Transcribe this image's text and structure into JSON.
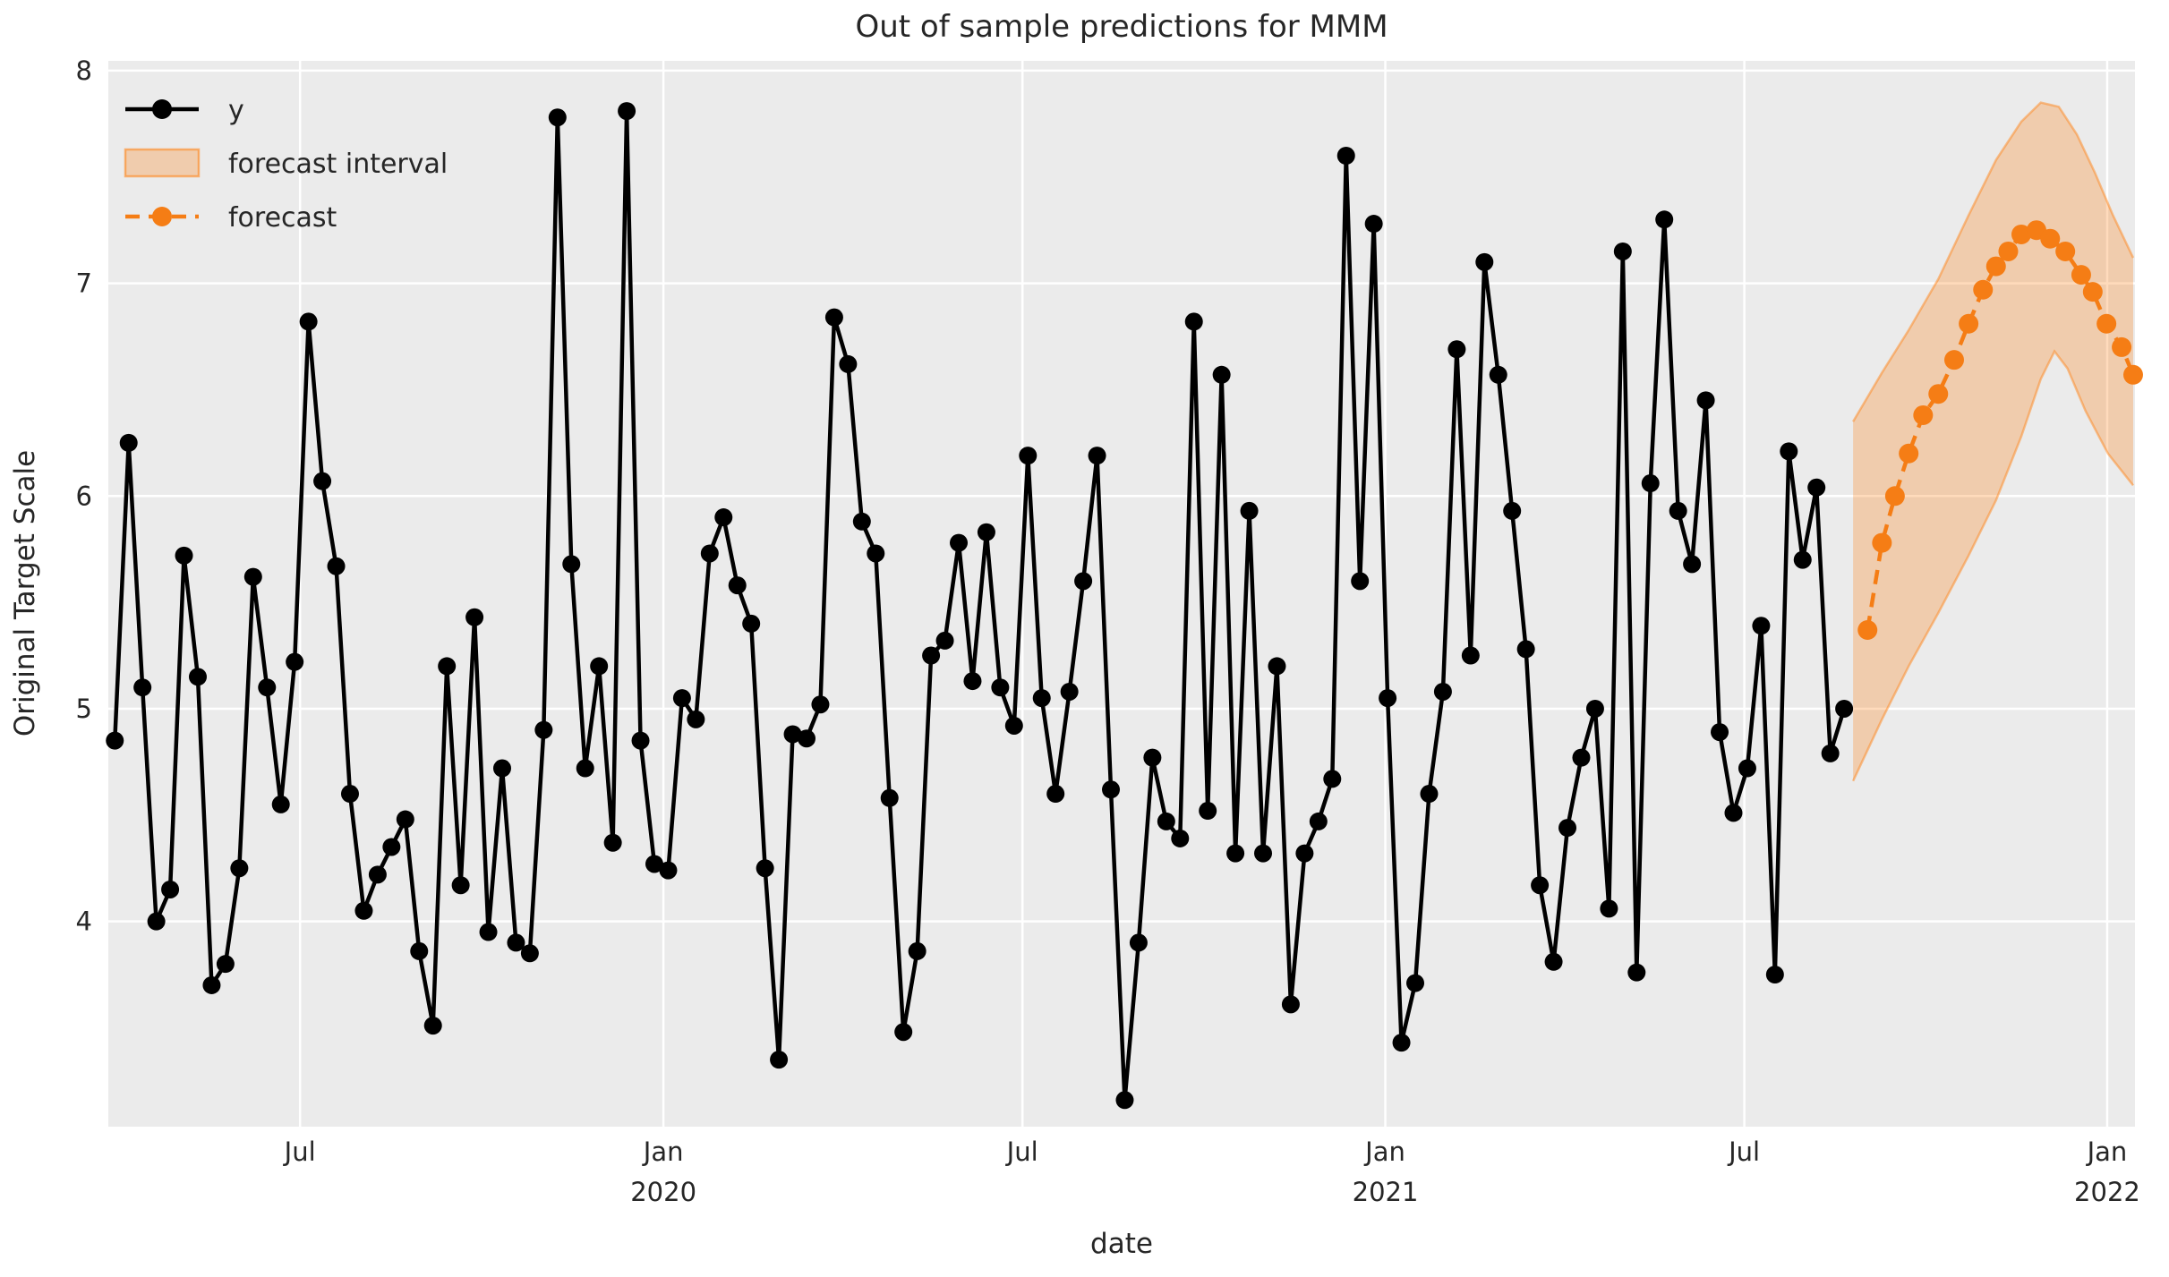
{
  "title": "Out of sample predictions for MMM",
  "chart_data": {
    "type": "line",
    "title": "Out of sample predictions for MMM",
    "xlabel": "date",
    "ylabel": "Original Target Scale",
    "x_unit": "years since 2020-01-01, weekly cadence",
    "xlim": [
      -0.769,
      2.0385
    ],
    "ylim": [
      3.035,
      8.046
    ],
    "grid": {
      "color": "#ffffff",
      "background": "#EBEBEB",
      "on": true
    },
    "x_ticks": [
      {
        "t": -0.5034,
        "label": "Jul"
      },
      {
        "t": 0.0,
        "label": "Jan\n2020"
      },
      {
        "t": 0.4973,
        "label": "Jul"
      },
      {
        "t": 1.0,
        "label": "Jan\n2021"
      },
      {
        "t": 1.4973,
        "label": "Jul"
      },
      {
        "t": 2.0,
        "label": "Jan\n2022"
      }
    ],
    "y_ticks": [
      4,
      5,
      6,
      7,
      8
    ],
    "legend": {
      "position": "upper left",
      "entries": [
        {
          "label": "y",
          "kind": "line-marker",
          "color": "#000000"
        },
        {
          "label": "forecast interval",
          "kind": "band",
          "color": "rgba(255,127,14,0.28)",
          "edge": "rgba(255,127,14,0.55)"
        },
        {
          "label": "forecast",
          "kind": "dashed-line-marker",
          "color": "#f57d15"
        }
      ]
    },
    "series": [
      {
        "name": "y",
        "style": "solid line with circle markers",
        "color": "#000000",
        "t_start": -0.76,
        "t_step": 0.019165,
        "values": [
          4.85,
          6.25,
          5.1,
          4.0,
          4.15,
          5.72,
          5.15,
          3.7,
          3.8,
          4.25,
          5.62,
          5.1,
          4.55,
          5.22,
          6.82,
          6.07,
          5.67,
          4.6,
          4.05,
          4.22,
          4.35,
          4.48,
          3.86,
          3.51,
          5.2,
          4.17,
          5.43,
          3.95,
          4.72,
          3.9,
          3.85,
          4.9,
          7.78,
          5.68,
          4.72,
          5.2,
          4.37,
          7.81,
          4.85,
          4.27,
          4.24,
          5.05,
          4.95,
          5.73,
          5.9,
          5.58,
          5.4,
          4.25,
          3.35,
          4.88,
          4.86,
          5.02,
          6.84,
          6.62,
          5.88,
          5.73,
          4.58,
          3.48,
          3.86,
          5.25,
          5.32,
          5.78,
          5.13,
          5.83,
          5.1,
          4.92,
          6.19,
          5.05,
          4.6,
          5.08,
          5.6,
          6.19,
          4.62,
          3.16,
          3.9,
          4.77,
          4.47,
          4.39,
          6.82,
          4.52,
          6.57,
          4.32,
          5.93,
          4.32,
          5.2,
          3.61,
          4.32,
          4.47,
          4.67,
          7.6,
          5.6,
          7.28,
          5.05,
          3.43,
          3.71,
          4.6,
          5.08,
          6.69,
          5.25,
          7.1,
          6.57,
          5.93,
          5.28,
          4.17,
          3.81,
          4.44,
          4.77,
          5.0,
          4.06,
          7.15,
          3.76,
          6.06,
          7.3,
          5.93,
          5.68,
          6.45,
          4.89,
          4.51,
          4.72,
          5.39,
          3.75,
          6.21,
          5.7,
          6.04,
          4.79,
          5.0
        ]
      },
      {
        "name": "forecast",
        "style": "dashed line with circle markers",
        "color": "#f57d15",
        "points": [
          [
            1.668,
            5.37
          ],
          [
            1.688,
            5.78
          ],
          [
            1.706,
            6.0
          ],
          [
            1.725,
            6.2
          ],
          [
            1.745,
            6.38
          ],
          [
            1.766,
            6.48
          ],
          [
            1.788,
            6.64
          ],
          [
            1.808,
            6.81
          ],
          [
            1.828,
            6.97
          ],
          [
            1.846,
            7.08
          ],
          [
            1.863,
            7.15
          ],
          [
            1.881,
            7.23
          ],
          [
            1.902,
            7.25
          ],
          [
            1.921,
            7.21
          ],
          [
            1.942,
            7.15
          ],
          [
            1.964,
            7.04
          ],
          [
            1.98,
            6.96
          ],
          [
            1.999,
            6.81
          ],
          [
            2.02,
            6.7
          ],
          [
            2.036,
            6.57
          ]
        ]
      },
      {
        "name": "forecast interval",
        "style": "filled band",
        "fill": "rgba(255,127,14,0.28)",
        "edge": "rgba(255,127,14,0.45)",
        "upper": [
          [
            1.648,
            6.35
          ],
          [
            1.688,
            6.58
          ],
          [
            1.725,
            6.78
          ],
          [
            1.766,
            7.02
          ],
          [
            1.808,
            7.32
          ],
          [
            1.846,
            7.58
          ],
          [
            1.881,
            7.76
          ],
          [
            1.908,
            7.85
          ],
          [
            1.933,
            7.83
          ],
          [
            1.958,
            7.7
          ],
          [
            1.983,
            7.52
          ],
          [
            2.008,
            7.32
          ],
          [
            2.036,
            7.12
          ]
        ],
        "lower": [
          [
            1.648,
            4.66
          ],
          [
            1.688,
            4.95
          ],
          [
            1.725,
            5.2
          ],
          [
            1.766,
            5.45
          ],
          [
            1.808,
            5.72
          ],
          [
            1.846,
            5.98
          ],
          [
            1.881,
            6.28
          ],
          [
            1.908,
            6.55
          ],
          [
            1.927,
            6.68
          ],
          [
            1.945,
            6.6
          ],
          [
            1.97,
            6.4
          ],
          [
            2.001,
            6.2
          ],
          [
            2.036,
            6.05
          ]
        ]
      }
    ]
  }
}
